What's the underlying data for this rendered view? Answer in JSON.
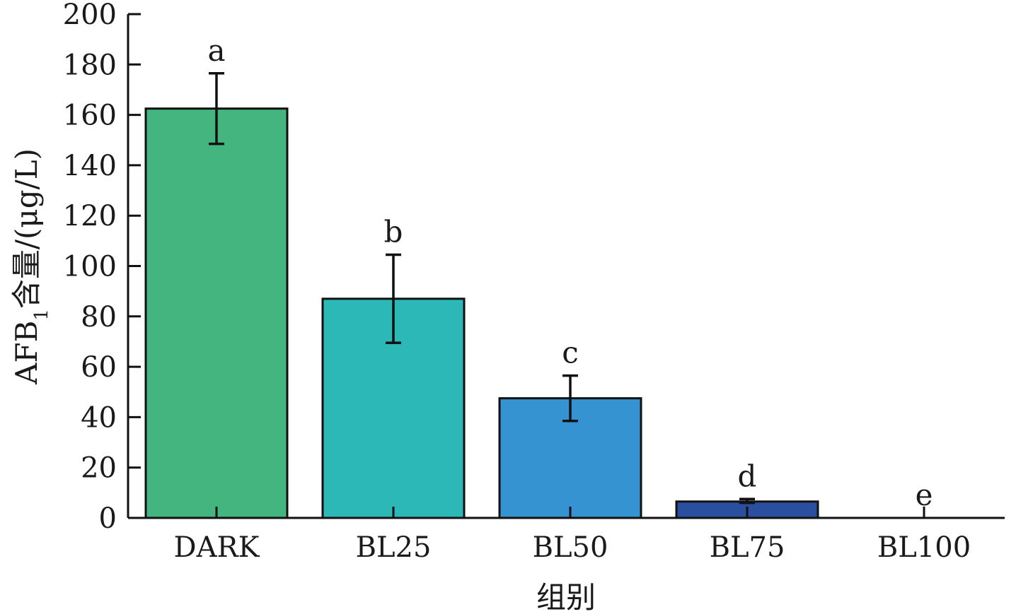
{
  "chart_data": {
    "type": "bar",
    "categories": [
      "DARK",
      "BL25",
      "BL50",
      "BL75",
      "BL100"
    ],
    "values": [
      162.5,
      87.0,
      47.5,
      6.5,
      0
    ],
    "error_low": [
      148.5,
      69.5,
      38.5,
      6.0,
      0
    ],
    "error_high": [
      176.5,
      104.5,
      56.5,
      7.5,
      0
    ],
    "significance_labels": [
      "a",
      "b",
      "c",
      "d",
      "e"
    ],
    "colors": [
      "#45b57f",
      "#2db8b8",
      "#3593d1",
      "#2a4f9e",
      "#2a4f9e"
    ],
    "xlabel": "组别",
    "ylabel_main": "AFB",
    "ylabel_sub": "1",
    "ylabel_rest": "含量/(μg/L)",
    "ylim": [
      0,
      200
    ],
    "yticks": [
      0,
      20,
      40,
      60,
      80,
      100,
      120,
      140,
      160,
      180,
      200
    ],
    "grid": false
  }
}
